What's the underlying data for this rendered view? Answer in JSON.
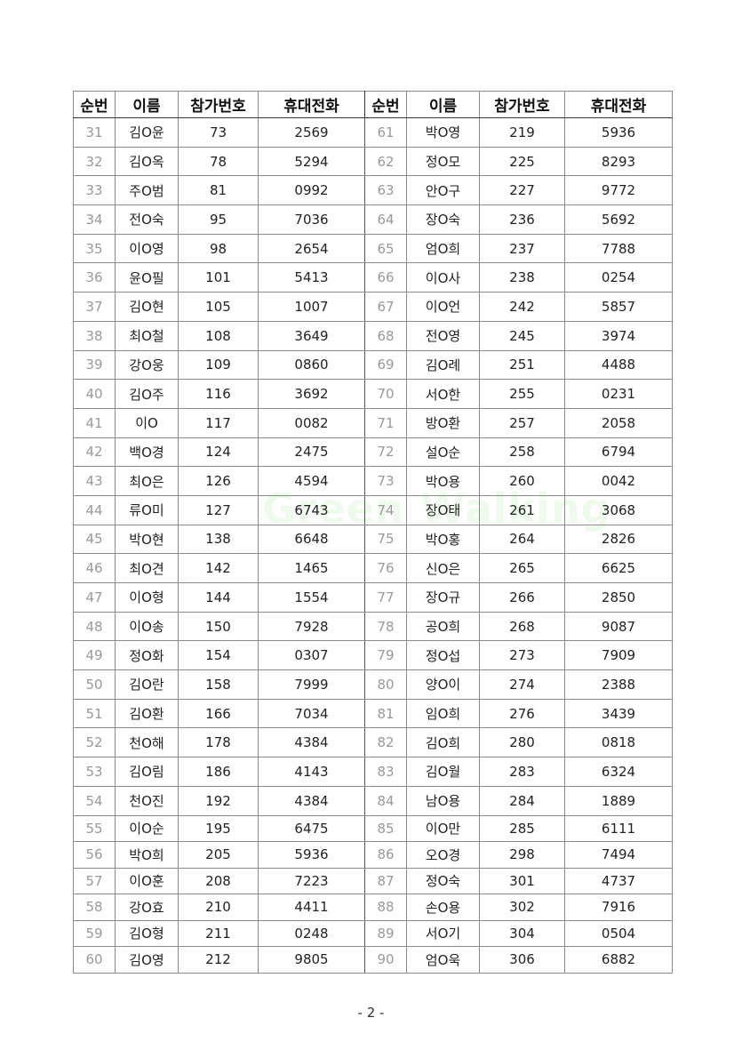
{
  "headers": [
    "순번",
    "이름",
    "참가번호",
    "휴대전화",
    "순번",
    "이름",
    "참가번호",
    "휴대전화"
  ],
  "watermark": "Green Walking",
  "rows": [
    [
      "31",
      "김O윤",
      "73",
      "2569",
      "61",
      "박O영",
      "219",
      "5936"
    ],
    [
      "32",
      "김O옥",
      "78",
      "5294",
      "62",
      "정O모",
      "225",
      "8293"
    ],
    [
      "33",
      "주O범",
      "81",
      "0992",
      "63",
      "안O구",
      "227",
      "9772"
    ],
    [
      "34",
      "전O숙",
      "95",
      "7036",
      "64",
      "장O숙",
      "236",
      "5692"
    ],
    [
      "35",
      "이O영",
      "98",
      "2654",
      "65",
      "엄O희",
      "237",
      "7788"
    ],
    [
      "36",
      "윤O필",
      "101",
      "5413",
      "66",
      "이O사",
      "238",
      "0254"
    ],
    [
      "37",
      "김O현",
      "105",
      "1007",
      "67",
      "이O언",
      "242",
      "5857"
    ],
    [
      "38",
      "최O철",
      "108",
      "3649",
      "68",
      "전O영",
      "245",
      "3974"
    ],
    [
      "39",
      "강O웅",
      "109",
      "0860",
      "69",
      "김O례",
      "251",
      "4488"
    ],
    [
      "40",
      "김O주",
      "116",
      "3692",
      "70",
      "서O한",
      "255",
      "0231"
    ],
    [
      "41",
      "이O",
      "117",
      "0082",
      "71",
      "방O환",
      "257",
      "2058"
    ],
    [
      "42",
      "백O경",
      "124",
      "2475",
      "72",
      "설O순",
      "258",
      "6794"
    ],
    [
      "43",
      "최O은",
      "126",
      "4594",
      "73",
      "박O용",
      "260",
      "0042"
    ],
    [
      "44",
      "류O미",
      "127",
      "6743",
      "74",
      "장O태",
      "261",
      "3068"
    ],
    [
      "45",
      "박O현",
      "138",
      "6648",
      "75",
      "박O홍",
      "264",
      "2826"
    ],
    [
      "46",
      "최O견",
      "142",
      "1465",
      "76",
      "신O은",
      "265",
      "6625"
    ],
    [
      "47",
      "이O형",
      "144",
      "1554",
      "77",
      "장O규",
      "266",
      "2850"
    ],
    [
      "48",
      "이O송",
      "150",
      "7928",
      "78",
      "공O희",
      "268",
      "9087"
    ],
    [
      "49",
      "정O화",
      "154",
      "0307",
      "79",
      "정O섭",
      "273",
      "7909"
    ],
    [
      "50",
      "김O란",
      "158",
      "7999",
      "80",
      "양O이",
      "274",
      "2388"
    ],
    [
      "51",
      "김O환",
      "166",
      "7034",
      "81",
      "임O희",
      "276",
      "3439"
    ],
    [
      "52",
      "천O해",
      "178",
      "4384",
      "82",
      "김O희",
      "280",
      "0818"
    ],
    [
      "53",
      "김O림",
      "186",
      "4143",
      "83",
      "김O월",
      "283",
      "6324"
    ],
    [
      "54",
      "천O진",
      "192",
      "4384",
      "84",
      "남O용",
      "284",
      "1889"
    ],
    [
      "55",
      "이O순",
      "195",
      "6475",
      "85",
      "이O만",
      "285",
      "6111"
    ],
    [
      "56",
      "박O희",
      "205",
      "5936",
      "86",
      "오O경",
      "298",
      "7494"
    ],
    [
      "57",
      "이O훈",
      "208",
      "7223",
      "87",
      "정O숙",
      "301",
      "4737"
    ],
    [
      "58",
      "강O효",
      "210",
      "4411",
      "88",
      "손O용",
      "302",
      "7916"
    ],
    [
      "59",
      "김O형",
      "211",
      "0248",
      "89",
      "서O기",
      "304",
      "0504"
    ],
    [
      "60",
      "김O영",
      "212",
      "9805",
      "90",
      "엄O욱",
      "306",
      "6882"
    ]
  ],
  "page_number": "- 2 -"
}
